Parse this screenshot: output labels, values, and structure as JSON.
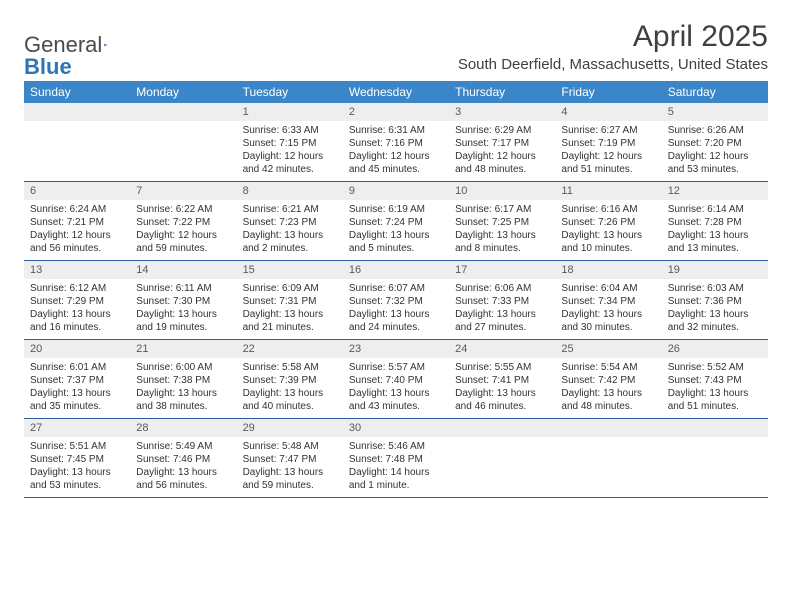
{
  "logo": {
    "text1": "General",
    "text2": "Blue"
  },
  "title": "April 2025",
  "subtitle": "South Deerfield, Massachusetts, United States",
  "colors": {
    "header_bg": "#3a86c8",
    "header_text": "#ffffff",
    "daynum_bg": "#eeeeee",
    "daynum_text": "#5a5a5a",
    "body_text": "#333333",
    "row_border": "#2f5fa0",
    "logo_gray": "#595959",
    "logo_blue": "#2f75b5"
  },
  "typography": {
    "title_fontsize": 30,
    "subtitle_fontsize": 15,
    "dayheader_fontsize": 12,
    "daynum_fontsize": 11,
    "body_fontsize": 10
  },
  "day_headers": [
    "Sunday",
    "Monday",
    "Tuesday",
    "Wednesday",
    "Thursday",
    "Friday",
    "Saturday"
  ],
  "weeks": [
    [
      {
        "n": "",
        "sunrise": "",
        "sunset": "",
        "daylight": ""
      },
      {
        "n": "",
        "sunrise": "",
        "sunset": "",
        "daylight": ""
      },
      {
        "n": "1",
        "sunrise": "Sunrise: 6:33 AM",
        "sunset": "Sunset: 7:15 PM",
        "daylight": "Daylight: 12 hours and 42 minutes."
      },
      {
        "n": "2",
        "sunrise": "Sunrise: 6:31 AM",
        "sunset": "Sunset: 7:16 PM",
        "daylight": "Daylight: 12 hours and 45 minutes."
      },
      {
        "n": "3",
        "sunrise": "Sunrise: 6:29 AM",
        "sunset": "Sunset: 7:17 PM",
        "daylight": "Daylight: 12 hours and 48 minutes."
      },
      {
        "n": "4",
        "sunrise": "Sunrise: 6:27 AM",
        "sunset": "Sunset: 7:19 PM",
        "daylight": "Daylight: 12 hours and 51 minutes."
      },
      {
        "n": "5",
        "sunrise": "Sunrise: 6:26 AM",
        "sunset": "Sunset: 7:20 PM",
        "daylight": "Daylight: 12 hours and 53 minutes."
      }
    ],
    [
      {
        "n": "6",
        "sunrise": "Sunrise: 6:24 AM",
        "sunset": "Sunset: 7:21 PM",
        "daylight": "Daylight: 12 hours and 56 minutes."
      },
      {
        "n": "7",
        "sunrise": "Sunrise: 6:22 AM",
        "sunset": "Sunset: 7:22 PM",
        "daylight": "Daylight: 12 hours and 59 minutes."
      },
      {
        "n": "8",
        "sunrise": "Sunrise: 6:21 AM",
        "sunset": "Sunset: 7:23 PM",
        "daylight": "Daylight: 13 hours and 2 minutes."
      },
      {
        "n": "9",
        "sunrise": "Sunrise: 6:19 AM",
        "sunset": "Sunset: 7:24 PM",
        "daylight": "Daylight: 13 hours and 5 minutes."
      },
      {
        "n": "10",
        "sunrise": "Sunrise: 6:17 AM",
        "sunset": "Sunset: 7:25 PM",
        "daylight": "Daylight: 13 hours and 8 minutes."
      },
      {
        "n": "11",
        "sunrise": "Sunrise: 6:16 AM",
        "sunset": "Sunset: 7:26 PM",
        "daylight": "Daylight: 13 hours and 10 minutes."
      },
      {
        "n": "12",
        "sunrise": "Sunrise: 6:14 AM",
        "sunset": "Sunset: 7:28 PM",
        "daylight": "Daylight: 13 hours and 13 minutes."
      }
    ],
    [
      {
        "n": "13",
        "sunrise": "Sunrise: 6:12 AM",
        "sunset": "Sunset: 7:29 PM",
        "daylight": "Daylight: 13 hours and 16 minutes."
      },
      {
        "n": "14",
        "sunrise": "Sunrise: 6:11 AM",
        "sunset": "Sunset: 7:30 PM",
        "daylight": "Daylight: 13 hours and 19 minutes."
      },
      {
        "n": "15",
        "sunrise": "Sunrise: 6:09 AM",
        "sunset": "Sunset: 7:31 PM",
        "daylight": "Daylight: 13 hours and 21 minutes."
      },
      {
        "n": "16",
        "sunrise": "Sunrise: 6:07 AM",
        "sunset": "Sunset: 7:32 PM",
        "daylight": "Daylight: 13 hours and 24 minutes."
      },
      {
        "n": "17",
        "sunrise": "Sunrise: 6:06 AM",
        "sunset": "Sunset: 7:33 PM",
        "daylight": "Daylight: 13 hours and 27 minutes."
      },
      {
        "n": "18",
        "sunrise": "Sunrise: 6:04 AM",
        "sunset": "Sunset: 7:34 PM",
        "daylight": "Daylight: 13 hours and 30 minutes."
      },
      {
        "n": "19",
        "sunrise": "Sunrise: 6:03 AM",
        "sunset": "Sunset: 7:36 PM",
        "daylight": "Daylight: 13 hours and 32 minutes."
      }
    ],
    [
      {
        "n": "20",
        "sunrise": "Sunrise: 6:01 AM",
        "sunset": "Sunset: 7:37 PM",
        "daylight": "Daylight: 13 hours and 35 minutes."
      },
      {
        "n": "21",
        "sunrise": "Sunrise: 6:00 AM",
        "sunset": "Sunset: 7:38 PM",
        "daylight": "Daylight: 13 hours and 38 minutes."
      },
      {
        "n": "22",
        "sunrise": "Sunrise: 5:58 AM",
        "sunset": "Sunset: 7:39 PM",
        "daylight": "Daylight: 13 hours and 40 minutes."
      },
      {
        "n": "23",
        "sunrise": "Sunrise: 5:57 AM",
        "sunset": "Sunset: 7:40 PM",
        "daylight": "Daylight: 13 hours and 43 minutes."
      },
      {
        "n": "24",
        "sunrise": "Sunrise: 5:55 AM",
        "sunset": "Sunset: 7:41 PM",
        "daylight": "Daylight: 13 hours and 46 minutes."
      },
      {
        "n": "25",
        "sunrise": "Sunrise: 5:54 AM",
        "sunset": "Sunset: 7:42 PM",
        "daylight": "Daylight: 13 hours and 48 minutes."
      },
      {
        "n": "26",
        "sunrise": "Sunrise: 5:52 AM",
        "sunset": "Sunset: 7:43 PM",
        "daylight": "Daylight: 13 hours and 51 minutes."
      }
    ],
    [
      {
        "n": "27",
        "sunrise": "Sunrise: 5:51 AM",
        "sunset": "Sunset: 7:45 PM",
        "daylight": "Daylight: 13 hours and 53 minutes."
      },
      {
        "n": "28",
        "sunrise": "Sunrise: 5:49 AM",
        "sunset": "Sunset: 7:46 PM",
        "daylight": "Daylight: 13 hours and 56 minutes."
      },
      {
        "n": "29",
        "sunrise": "Sunrise: 5:48 AM",
        "sunset": "Sunset: 7:47 PM",
        "daylight": "Daylight: 13 hours and 59 minutes."
      },
      {
        "n": "30",
        "sunrise": "Sunrise: 5:46 AM",
        "sunset": "Sunset: 7:48 PM",
        "daylight": "Daylight: 14 hours and 1 minute."
      },
      {
        "n": "",
        "sunrise": "",
        "sunset": "",
        "daylight": ""
      },
      {
        "n": "",
        "sunrise": "",
        "sunset": "",
        "daylight": ""
      },
      {
        "n": "",
        "sunrise": "",
        "sunset": "",
        "daylight": ""
      }
    ]
  ]
}
